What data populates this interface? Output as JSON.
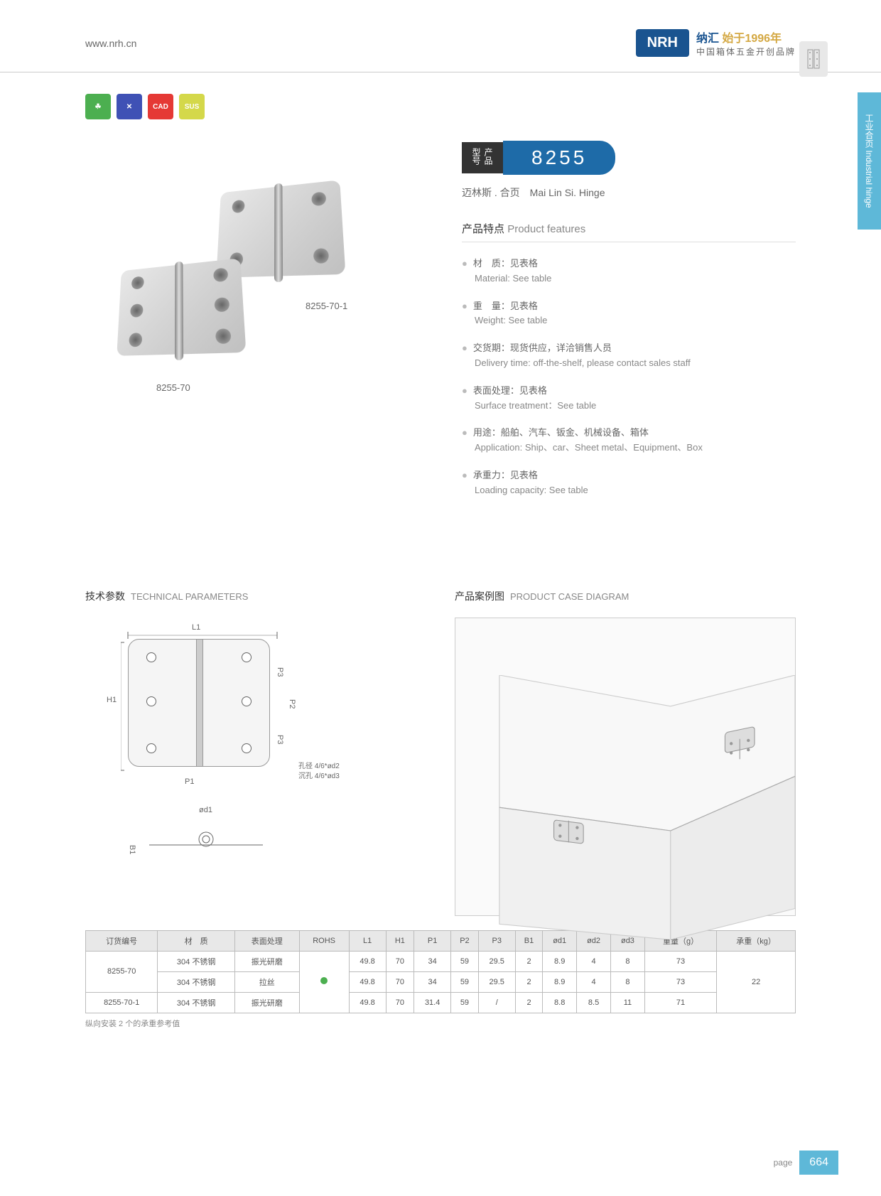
{
  "header": {
    "website": "www.nrh.cn",
    "logo": "NRH",
    "brand_cn": "纳汇",
    "brand_year": "始于1996年",
    "brand_sub": "中国箱体五金开创品牌"
  },
  "side_tab": "工业合页 Industrial hinge",
  "badges": [
    "☘",
    "✕",
    "CAD",
    "SUS"
  ],
  "images": {
    "label1": "8255-70-1",
    "label2": "8255-70"
  },
  "model": {
    "label": "产品型号",
    "number": "8255",
    "name_cn": "迈林斯 . 合页",
    "name_en": "Mai Lin Si. Hinge"
  },
  "features": {
    "title_cn": "产品特点",
    "title_en": "Product features",
    "items": [
      {
        "cn": "材　质：见表格",
        "en": "Material: See table"
      },
      {
        "cn": "重　量：见表格",
        "en": "Weight: See table"
      },
      {
        "cn": "交货期：现货供应，详洽销售人员",
        "en": "Delivery time: off-the-shelf, please contact sales staff"
      },
      {
        "cn": "表面处理：见表格",
        "en": "Surface treatment：See table"
      },
      {
        "cn": "用途：船舶、汽车、钣金、机械设备、箱体",
        "en": "Application: Ship、car、Sheet metal、Equipment、Box"
      },
      {
        "cn": "承重力：见表格",
        "en": "Loading capacity: See table"
      }
    ]
  },
  "tech": {
    "title_cn": "技术参数",
    "title_en": "TECHNICAL PARAMETERS",
    "dims": {
      "L1": "L1",
      "H1": "H1",
      "P1": "P1",
      "P2": "P2",
      "P3": "P3",
      "B1": "B1",
      "od1": "ød1",
      "note1": "孔径 4/6*ød2",
      "note2": "沉孔 4/6*ød3"
    }
  },
  "case": {
    "title_cn": "产品案例图",
    "title_en": "PRODUCT CASE DIAGRAM"
  },
  "table": {
    "headers": [
      "订货编号",
      "材　质",
      "表面处理",
      "ROHS",
      "L1",
      "H1",
      "P1",
      "P2",
      "P3",
      "B1",
      "ød1",
      "ød2",
      "ød3",
      "重量（g）",
      "承重（kg）"
    ],
    "rows": [
      [
        "8255-70",
        "304 不锈钢",
        "振光研磨",
        "",
        "49.8",
        "70",
        "34",
        "59",
        "29.5",
        "2",
        "8.9",
        "4",
        "8",
        "73",
        "22"
      ],
      [
        "",
        "304 不锈钢",
        "拉丝",
        "●",
        "49.8",
        "70",
        "34",
        "59",
        "29.5",
        "2",
        "8.9",
        "4",
        "8",
        "73",
        ""
      ],
      [
        "8255-70-1",
        "304 不锈钢",
        "振光研磨",
        "",
        "49.8",
        "70",
        "31.4",
        "59",
        "/",
        "2",
        "8.8",
        "8.5",
        "11",
        "71",
        ""
      ]
    ],
    "note": "纵向安装 2 个的承重参考值"
  },
  "footer": {
    "page_label": "page",
    "page_num": "664"
  }
}
